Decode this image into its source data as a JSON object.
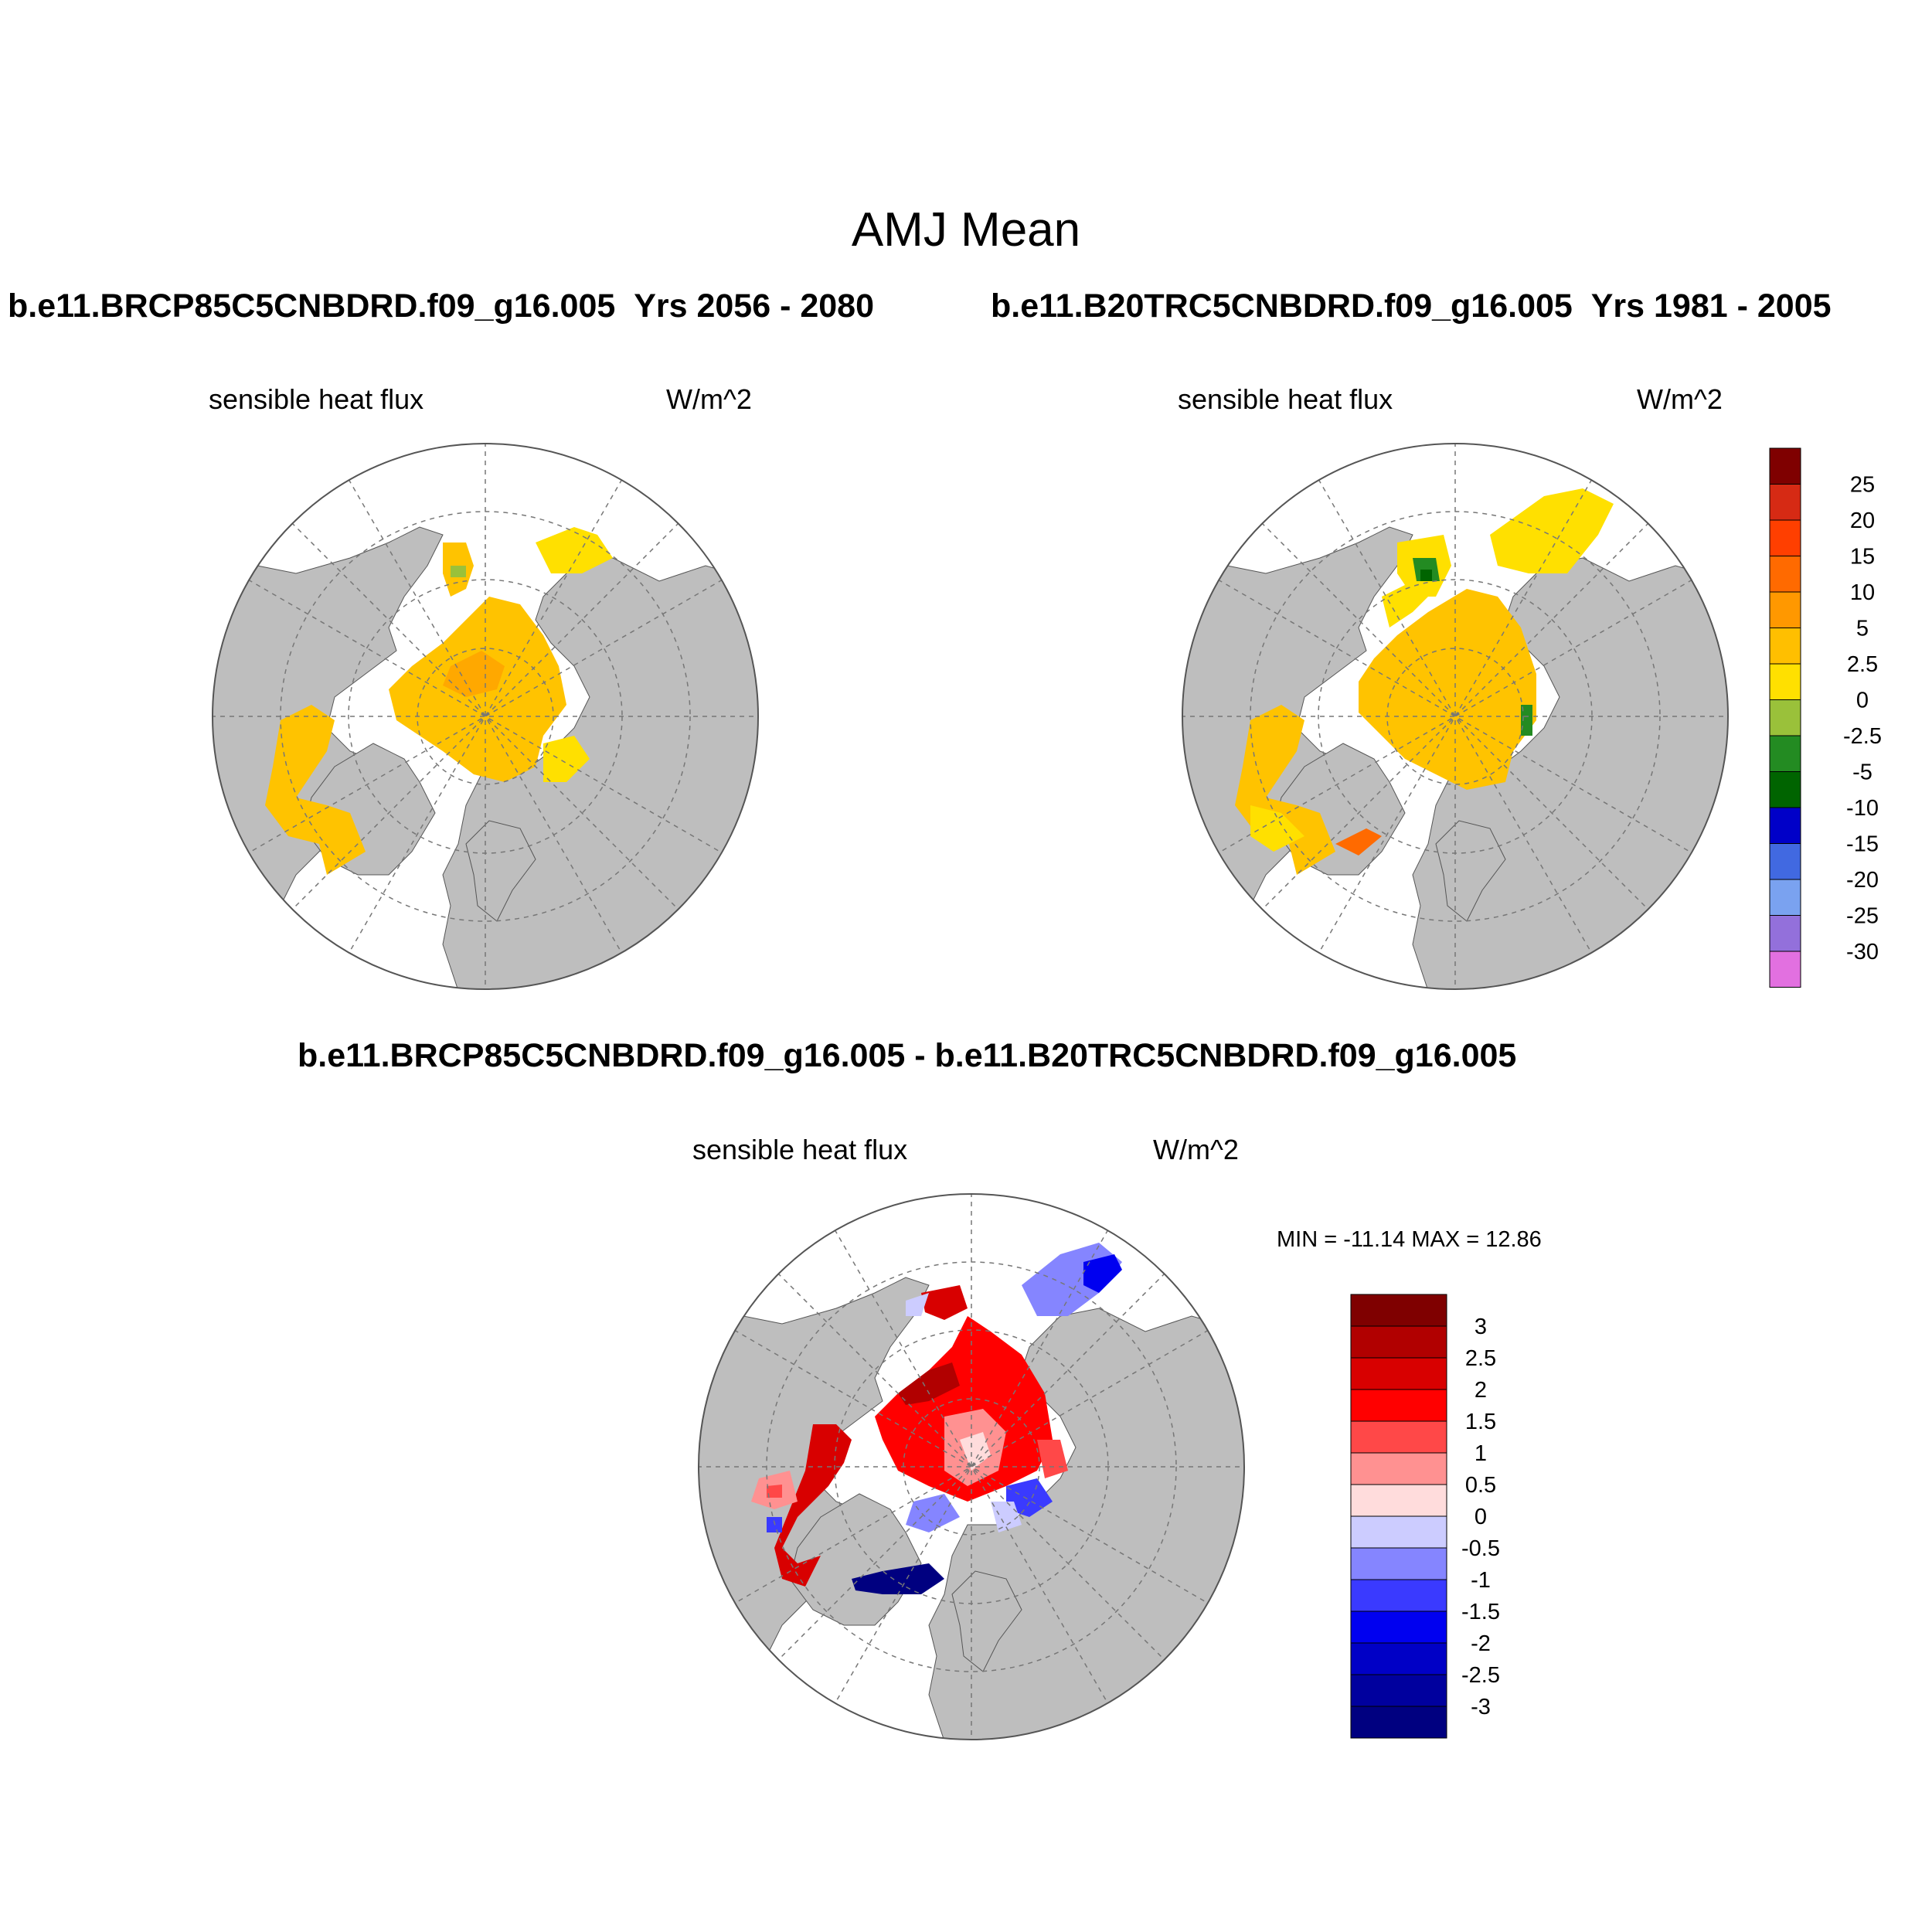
{
  "figure": {
    "title": "AMJ Mean",
    "case_a": "b.e11.BRCP85C5CNBDRD.f09_g16.005",
    "case_a_years": "Yrs 2056 - 2080",
    "case_b": "b.e11.B20TRC5CNBDRD.f09_g16.005",
    "case_b_years": "Yrs 1981 - 2005",
    "diff_title": "b.e11.BRCP85C5CNBDRD.f09_g16.005 - b.e11.B20TRC5CNBDRD.f09_g16.005"
  },
  "panels": [
    {
      "variable": "sensible heat flux",
      "units": "W/m^2"
    },
    {
      "variable": "sensible heat flux",
      "units": "W/m^2"
    },
    {
      "variable": "sensible heat flux",
      "units": "W/m^2",
      "stats": "MIN = -11.14 MAX =  12.86"
    }
  ],
  "colors": {
    "land": "#bebebe",
    "ocean": "#ffffff",
    "top_colorbar": [
      "#7f0000",
      "#d62a14",
      "#ff3f00",
      "#ff6a00",
      "#ff9800",
      "#ffbf00",
      "#ffe000",
      "#9ac13a",
      "#238b22",
      "#006400",
      "#0000c8",
      "#4169e1",
      "#7aa2f0",
      "#9370db",
      "#e270e0"
    ],
    "diff_colorbar": [
      "#7f0000",
      "#b10000",
      "#d80000",
      "#ff0000",
      "#ff4848",
      "#ff9191",
      "#ffdcdc",
      "#ccccff",
      "#8585ff",
      "#3a3aff",
      "#0000f0",
      "#0000c6",
      "#00009e",
      "#000080"
    ]
  },
  "top_colorbar_labels": [
    "25",
    "20",
    "15",
    "10",
    "5",
    "2.5",
    "0",
    "-2.5",
    "-5",
    "-10",
    "-15",
    "-20",
    "-25",
    "-30"
  ],
  "diff_colorbar_labels": [
    "3",
    "2.5",
    "2",
    "1.5",
    "1",
    "0.5",
    "0",
    "-0.5",
    "-1",
    "-1.5",
    "-2",
    "-2.5",
    "-3"
  ]
}
